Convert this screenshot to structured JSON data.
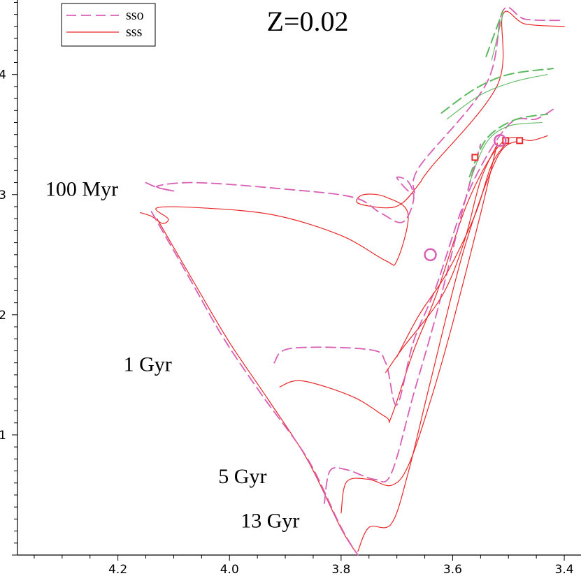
{
  "chart_data": {
    "type": "line",
    "title": "Z=0.02",
    "xlabel": "",
    "ylabel": "",
    "xlim": [
      4.38,
      3.37
    ],
    "ylim": [
      0.0,
      4.62
    ],
    "x_reversed": true,
    "x_ticks": [
      "4.2",
      "4.0",
      "3.8",
      "3.6",
      "3.4"
    ],
    "y_ticks": [
      "1",
      "2",
      "3",
      "4"
    ],
    "legend": {
      "placement": "top-left",
      "entries": [
        "sso",
        "sss"
      ]
    },
    "colors": {
      "sso": "#d95fb4",
      "sss": "#e8282a",
      "branch": "#5cb860",
      "marker_square": "#e8282a",
      "marker_circle": "#d95fb4"
    },
    "isochrone_labels": [
      {
        "text": "100 Myr",
        "x": 4.33,
        "y": 2.99
      },
      {
        "text": "1 Gyr",
        "x": 4.19,
        "y": 1.53
      },
      {
        "text": "5 Gyr",
        "x": 4.02,
        "y": 0.6
      },
      {
        "text": "13 Gyr",
        "x": 3.98,
        "y": 0.23
      }
    ],
    "series": [
      {
        "style": "sss",
        "points": [
          [
            4.16,
            2.85
          ],
          [
            4.14,
            2.82
          ],
          [
            4.12,
            2.76
          ],
          [
            4.11,
            2.8
          ],
          [
            4.13,
            2.89
          ],
          [
            4.05,
            2.89
          ],
          [
            3.92,
            2.83
          ],
          [
            3.8,
            2.66
          ],
          [
            3.72,
            2.45
          ],
          [
            3.7,
            2.45
          ],
          [
            3.68,
            2.84
          ],
          [
            3.72,
            2.98
          ],
          [
            3.76,
            3.0
          ],
          [
            3.77,
            2.93
          ],
          [
            3.72,
            2.89
          ],
          [
            3.69,
            2.93
          ],
          [
            3.66,
            3.09
          ],
          [
            3.64,
            3.22
          ],
          [
            3.52,
            3.91
          ],
          [
            3.51,
            4.5
          ],
          [
            3.47,
            4.42
          ],
          [
            3.4,
            4.4
          ]
        ]
      },
      {
        "style": "sso",
        "points": [
          [
            4.15,
            3.1
          ],
          [
            4.13,
            3.06
          ],
          [
            4.1,
            3.03
          ],
          [
            4.13,
            3.07
          ],
          [
            4.06,
            3.1
          ],
          [
            3.91,
            3.05
          ],
          [
            3.78,
            2.98
          ],
          [
            3.73,
            2.85
          ],
          [
            3.69,
            2.77
          ],
          [
            3.67,
            2.96
          ],
          [
            3.68,
            3.11
          ],
          [
            3.7,
            3.14
          ],
          [
            3.67,
            3.01
          ],
          [
            3.66,
            3.23
          ],
          [
            3.54,
            3.92
          ],
          [
            3.51,
            4.53
          ],
          [
            3.47,
            4.46
          ],
          [
            3.4,
            4.45
          ]
        ]
      },
      {
        "style": "sss",
        "points": [
          [
            4.13,
            2.8
          ],
          [
            4.06,
            2.24
          ],
          [
            4.0,
            1.77
          ],
          [
            3.93,
            1.29
          ],
          [
            3.86,
            0.79
          ],
          [
            3.8,
            0.22
          ],
          [
            3.77,
            0.0
          ]
        ]
      },
      {
        "style": "sso",
        "points": [
          [
            4.14,
            2.86
          ],
          [
            4.07,
            2.29
          ],
          [
            4.01,
            1.8
          ],
          [
            3.94,
            1.32
          ],
          [
            3.86,
            0.8
          ],
          [
            3.8,
            0.23
          ],
          [
            3.77,
            0.0
          ]
        ]
      },
      {
        "style": "sss",
        "points": [
          [
            3.91,
            1.4
          ],
          [
            3.87,
            1.45
          ],
          [
            3.78,
            1.32
          ],
          [
            3.72,
            1.15
          ],
          [
            3.71,
            1.15
          ],
          [
            3.67,
            1.7
          ],
          [
            3.63,
            2.16
          ],
          [
            3.57,
            2.97
          ],
          [
            3.51,
            3.44
          ],
          [
            3.46,
            3.45
          ],
          [
            3.43,
            3.49
          ]
        ]
      },
      {
        "style": "sso",
        "points": [
          [
            3.92,
            1.6
          ],
          [
            3.89,
            1.72
          ],
          [
            3.75,
            1.71
          ],
          [
            3.72,
            1.6
          ],
          [
            3.7,
            1.25
          ],
          [
            3.67,
            1.78
          ],
          [
            3.63,
            2.23
          ],
          [
            3.57,
            3.04
          ],
          [
            3.5,
            3.58
          ],
          [
            3.45,
            3.63
          ],
          [
            3.42,
            3.71
          ]
        ]
      },
      {
        "style": "sss",
        "points": [
          [
            3.8,
            0.35
          ],
          [
            3.79,
            0.61
          ],
          [
            3.75,
            0.63
          ],
          [
            3.71,
            0.58
          ],
          [
            3.68,
            0.74
          ],
          [
            3.64,
            1.28
          ],
          [
            3.6,
            1.93
          ],
          [
            3.55,
            2.84
          ],
          [
            3.52,
            3.43
          ]
        ]
      },
      {
        "style": "sso",
        "points": [
          [
            3.83,
            0.43
          ],
          [
            3.82,
            0.7
          ],
          [
            3.79,
            0.71
          ],
          [
            3.74,
            0.63
          ],
          [
            3.71,
            0.68
          ],
          [
            3.67,
            1.34
          ],
          [
            3.63,
            1.99
          ],
          [
            3.58,
            2.91
          ],
          [
            3.55,
            3.42
          ]
        ]
      },
      {
        "style": "sss",
        "points": [
          [
            3.77,
            0.03
          ],
          [
            3.75,
            0.23
          ],
          [
            3.71,
            0.26
          ],
          [
            3.68,
            0.68
          ],
          [
            3.64,
            1.44
          ],
          [
            3.58,
            2.54
          ],
          [
            3.52,
            3.31
          ],
          [
            3.48,
            3.45
          ]
        ]
      },
      {
        "style": "sss",
        "points": [
          [
            3.72,
            1.52
          ],
          [
            3.69,
            1.72
          ],
          [
            3.62,
            2.15
          ],
          [
            3.58,
            2.6
          ],
          [
            3.55,
            3.12
          ],
          [
            3.52,
            3.42
          ]
        ]
      },
      {
        "style": "sss",
        "points": [
          [
            3.7,
            1.65
          ],
          [
            3.66,
            2.0
          ],
          [
            3.61,
            2.35
          ],
          [
            3.56,
            2.83
          ],
          [
            3.53,
            3.25
          ],
          [
            3.5,
            3.45
          ]
        ]
      },
      {
        "style": "branch",
        "points": [
          [
            3.57,
            3.1
          ],
          [
            3.54,
            3.43
          ],
          [
            3.5,
            3.57
          ],
          [
            3.44,
            3.6
          ]
        ]
      },
      {
        "style": "branch-dash",
        "points": [
          [
            3.57,
            3.15
          ],
          [
            3.54,
            3.46
          ],
          [
            3.49,
            3.62
          ],
          [
            3.43,
            3.67
          ]
        ]
      },
      {
        "style": "branch",
        "points": [
          [
            3.61,
            3.63
          ],
          [
            3.55,
            3.83
          ],
          [
            3.49,
            3.94
          ],
          [
            3.43,
            4.0
          ]
        ]
      },
      {
        "style": "branch-dash",
        "points": [
          [
            3.62,
            3.68
          ],
          [
            3.56,
            3.88
          ],
          [
            3.5,
            4.0
          ],
          [
            3.42,
            4.05
          ]
        ]
      },
      {
        "style": "branch",
        "points": [
          [
            3.53,
            4.12
          ],
          [
            3.51,
            4.5
          ]
        ]
      },
      {
        "style": "branch-dash",
        "points": [
          [
            3.54,
            4.15
          ],
          [
            3.51,
            4.53
          ]
        ]
      }
    ],
    "markers": [
      {
        "shape": "square",
        "x": 3.56,
        "y": 3.31
      },
      {
        "shape": "square",
        "x": 3.505,
        "y": 3.45
      },
      {
        "shape": "square",
        "x": 3.48,
        "y": 3.45
      },
      {
        "shape": "circle",
        "x": 3.515,
        "y": 3.45
      },
      {
        "shape": "circle",
        "x": 3.64,
        "y": 2.5
      }
    ]
  }
}
